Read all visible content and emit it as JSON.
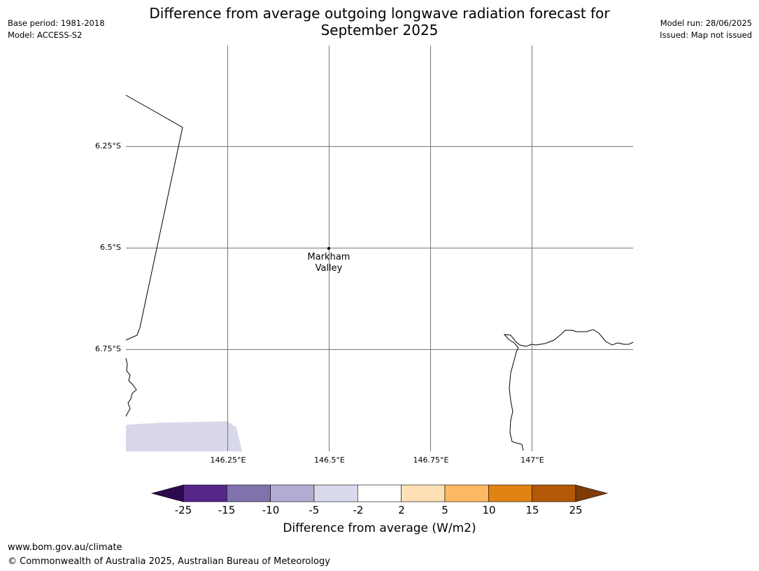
{
  "header": {
    "base_period": "Base period: 1981-2018",
    "model": "Model: ACCESS-S2",
    "title_line1": "Difference from average outgoing longwave radiation forecast for",
    "title_line2": "September 2025",
    "model_run": "Model run: 28/06/2025",
    "issued": "Issued: Map not issued"
  },
  "map": {
    "lat_labels": [
      "6.25°S",
      "6.5°S",
      "6.75°S"
    ],
    "lon_labels": [
      "146.25°E",
      "146.5°E",
      "146.75°E",
      "147°E"
    ],
    "place": {
      "name_line1": "Markham",
      "name_line2": "Valley",
      "lat": -6.5,
      "lon": 146.5
    },
    "extent": {
      "lon_min": 146.0,
      "lon_max": 147.25,
      "lat_min": -7.0,
      "lat_max": -6.0
    },
    "coastline_color": "#000000",
    "gridline_color": "#777777",
    "shaded_region": {
      "bin": "-5 to -2",
      "color": "#d8d8ea",
      "location": "south-west corner"
    }
  },
  "colorbar": {
    "label": "Difference from average (W/m2)",
    "ticks": [
      "-25",
      "-15",
      "-10",
      "-5",
      "-2",
      "2",
      "5",
      "10",
      "15",
      "25"
    ],
    "under_color": "#2d0a4f",
    "over_color": "#7f3b08",
    "bin_colors": [
      "#542788",
      "#8073ac",
      "#b2abd2",
      "#d8daeb",
      "#ffffff",
      "#fee0b6",
      "#fdb863",
      "#e08214",
      "#b35806"
    ]
  },
  "footer": {
    "url": "www.bom.gov.au/climate",
    "copyright": "© Commonwealth of Australia 2025, Australian Bureau of Meteorology"
  }
}
